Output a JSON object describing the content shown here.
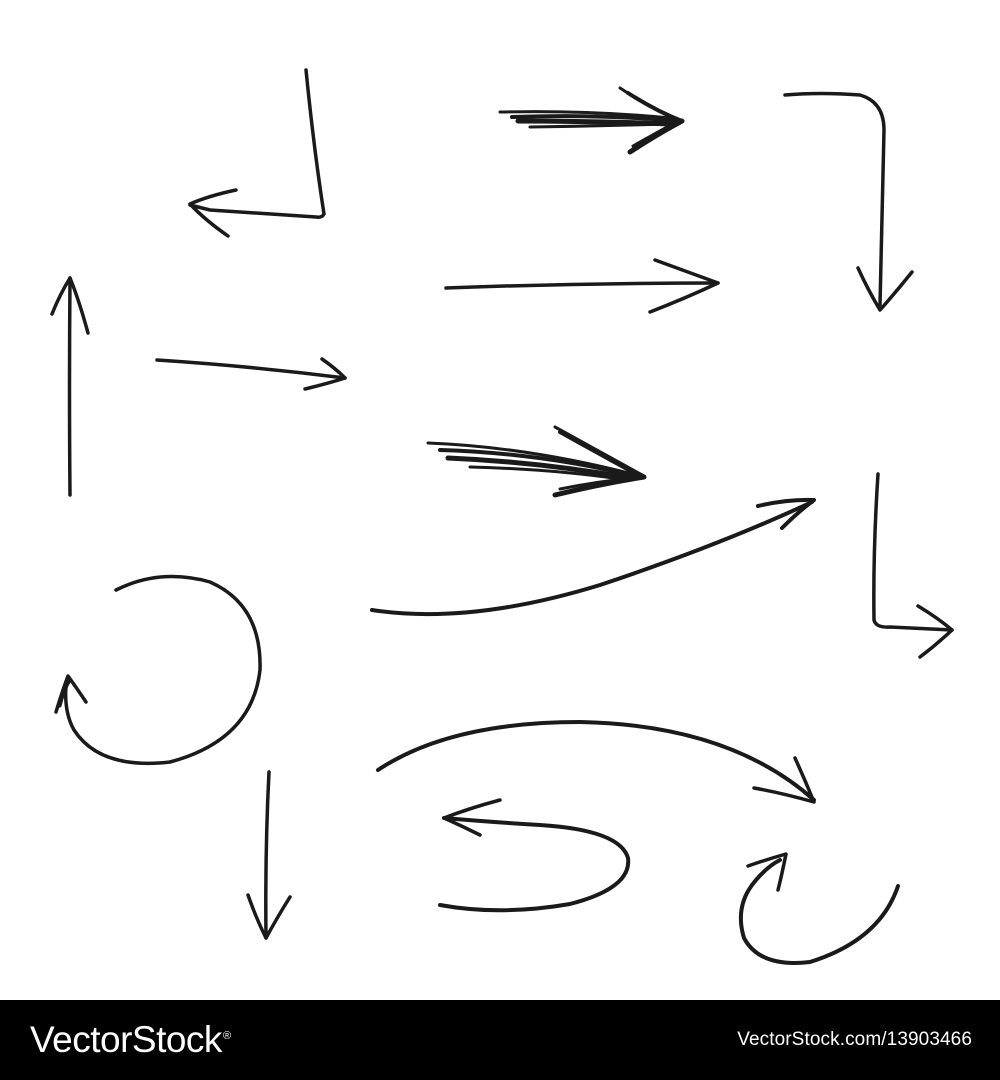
{
  "colors": {
    "background": "#ffffff",
    "ink": "#1a1a1a",
    "footer_background": "#000000",
    "footer_text": "#ffffff"
  },
  "artwork": {
    "description_icons": [
      "corner-left-arrow-icon",
      "sketchy-right-arrow-icon",
      "corner-down-arrow-icon",
      "long-right-arrow-icon",
      "up-arrow-icon",
      "short-right-arrow-icon",
      "sketchy-right-arrow-icon",
      "curved-up-right-arrow-icon",
      "corner-right-arrow-icon",
      "circular-arrow-icon",
      "arc-right-arrow-icon",
      "down-arrow-icon",
      "u-turn-left-arrow-icon",
      "curl-arrow-icon"
    ]
  },
  "footer": {
    "brand": "VectorStock",
    "brand_mark": "®",
    "image_id": "VectorStock.com/13903466"
  }
}
